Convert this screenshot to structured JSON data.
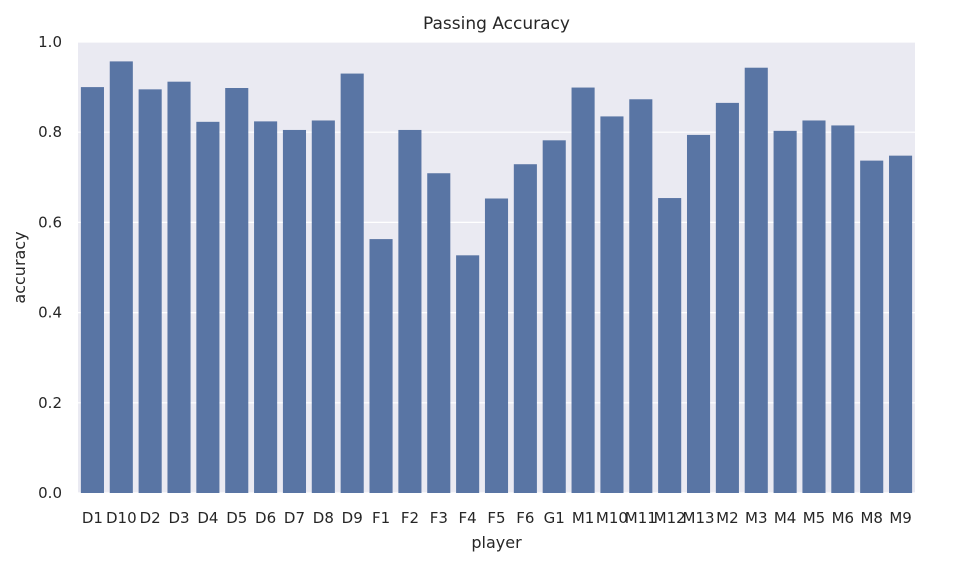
{
  "chart_data": {
    "type": "bar",
    "title": "Passing Accuracy",
    "xlabel": "player",
    "ylabel": "accuracy",
    "categories": [
      "D1",
      "D10",
      "D2",
      "D3",
      "D4",
      "D5",
      "D6",
      "D7",
      "D8",
      "D9",
      "F1",
      "F2",
      "F3",
      "F4",
      "F5",
      "F6",
      "G1",
      "M1",
      "M10",
      "M11",
      "M12",
      "M13",
      "M2",
      "M3",
      "M4",
      "M5",
      "M6",
      "M8",
      "M9"
    ],
    "values": [
      0.9,
      0.957,
      0.895,
      0.912,
      0.823,
      0.898,
      0.824,
      0.805,
      0.826,
      0.93,
      0.563,
      0.805,
      0.709,
      0.527,
      0.653,
      0.729,
      0.782,
      0.899,
      0.835,
      0.873,
      0.654,
      0.794,
      0.865,
      0.943,
      0.803,
      0.826,
      0.815,
      0.737,
      0.748
    ],
    "ylim": [
      0,
      1.0
    ],
    "yticks": [
      0.0,
      0.2,
      0.4,
      0.6,
      0.8,
      1.0
    ],
    "ytick_labels": [
      "0.0",
      "0.2",
      "0.4",
      "0.6",
      "0.8",
      "1.0"
    ],
    "grid": true,
    "colors": {
      "background": "#eaeaf2",
      "bar": "#5975a4",
      "grid": "#ffffff"
    }
  }
}
